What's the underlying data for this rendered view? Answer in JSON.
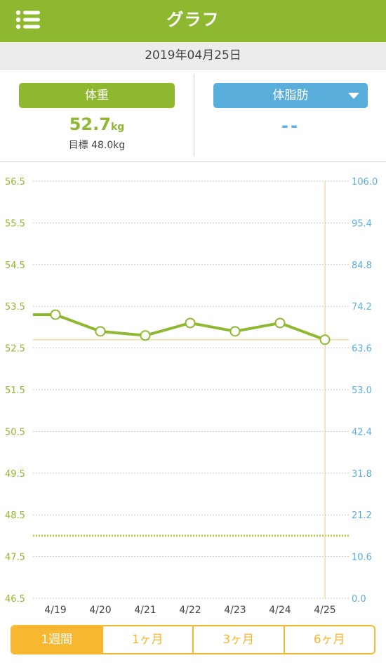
{
  "header": {
    "title": "グラフ",
    "menu_icon": "menu-list-icon"
  },
  "date": "2019年04月25日",
  "summary": {
    "weight_button": "体重",
    "weight_value": "52.7",
    "weight_unit": "kg",
    "goal_text": "目標 48.0kg",
    "fat_button": "体脂肪",
    "fat_value": "--"
  },
  "colors": {
    "green": "#8fb831",
    "blue": "#5aaedc",
    "orange": "#f7b731",
    "goal_line": "#b6d24a",
    "marker_line": "#f0dca0"
  },
  "chart_data": {
    "type": "line",
    "categories": [
      "4/19",
      "4/20",
      "4/21",
      "4/22",
      "4/23",
      "4/24",
      "4/25"
    ],
    "y_left_ticks": [
      "56.5",
      "55.5",
      "54.5",
      "53.5",
      "52.5",
      "51.5",
      "50.5",
      "49.5",
      "48.5",
      "47.5",
      "46.5"
    ],
    "y_right_ticks": [
      "106.0",
      "95.4",
      "84.8",
      "74.2",
      "63.6",
      "53.0",
      "42.4",
      "31.8",
      "21.2",
      "10.6",
      "0.0"
    ],
    "ylim_left": [
      46.5,
      56.5
    ],
    "ylim_right": [
      0.0,
      106.0
    ],
    "series": [
      {
        "values": [
          53.3,
          52.9,
          52.8,
          53.1,
          52.9,
          53.1,
          52.7
        ]
      }
    ],
    "goal": 48.0,
    "current": 52.7,
    "selected_index": 6,
    "grid": true
  },
  "tabs": [
    {
      "label": "1週間",
      "active": true
    },
    {
      "label": "1ヶ月",
      "active": false
    },
    {
      "label": "3ヶ月",
      "active": false
    },
    {
      "label": "6ヶ月",
      "active": false
    }
  ]
}
